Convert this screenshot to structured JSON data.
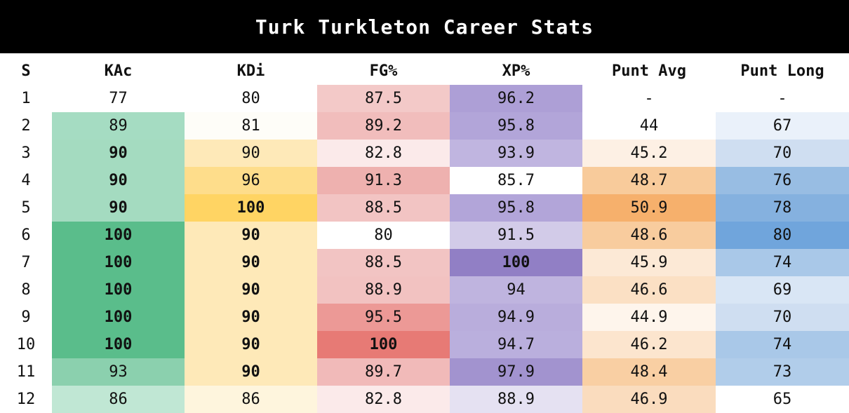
{
  "title": "Turk Turkleton Career Stats",
  "headers": [
    "S",
    "KAc",
    "KDi",
    "FG%",
    "XP%",
    "Punt Avg",
    "Punt Long"
  ],
  "rows": [
    {
      "cells": [
        {
          "v": "1",
          "bg": "#ffffff",
          "b": false
        },
        {
          "v": "77",
          "bg": "#ffffff",
          "b": false
        },
        {
          "v": "80",
          "bg": "#ffffff",
          "b": false
        },
        {
          "v": "87.5",
          "bg": "#f3c9c8",
          "b": false
        },
        {
          "v": "96.2",
          "bg": "#ad9fd6",
          "b": false
        },
        {
          "v": "-",
          "bg": "#ffffff",
          "b": false
        },
        {
          "v": "-",
          "bg": "#ffffff",
          "b": false
        }
      ]
    },
    {
      "cells": [
        {
          "v": "2",
          "bg": "#ffffff",
          "b": false
        },
        {
          "v": "89",
          "bg": "#a5dcc2",
          "b": false
        },
        {
          "v": "81",
          "bg": "#fefdf8",
          "b": false
        },
        {
          "v": "89.2",
          "bg": "#f1bdbc",
          "b": false
        },
        {
          "v": "95.8",
          "bg": "#b2a5d9",
          "b": false
        },
        {
          "v": "44",
          "bg": "#ffffff",
          "b": false
        },
        {
          "v": "67",
          "bg": "#eaf1fa",
          "b": false
        }
      ]
    },
    {
      "cells": [
        {
          "v": "3",
          "bg": "#ffffff",
          "b": false
        },
        {
          "v": "90",
          "bg": "#a4dbc0",
          "b": true
        },
        {
          "v": "90",
          "bg": "#fee9b8",
          "b": false
        },
        {
          "v": "82.8",
          "bg": "#fbeaea",
          "b": false
        },
        {
          "v": "93.9",
          "bg": "#c0b5e0",
          "b": false
        },
        {
          "v": "45.2",
          "bg": "#fdf0e4",
          "b": false
        },
        {
          "v": "70",
          "bg": "#cfdef1",
          "b": false
        }
      ]
    },
    {
      "cells": [
        {
          "v": "4",
          "bg": "#ffffff",
          "b": false
        },
        {
          "v": "90",
          "bg": "#a4dbc0",
          "b": true
        },
        {
          "v": "96",
          "bg": "#fedd8b",
          "b": false
        },
        {
          "v": "91.3",
          "bg": "#eeb1af",
          "b": false
        },
        {
          "v": "85.7",
          "bg": "#ffffff",
          "b": false
        },
        {
          "v": "48.7",
          "bg": "#f8cb9b",
          "b": false
        },
        {
          "v": "76",
          "bg": "#98bde3",
          "b": false
        }
      ]
    },
    {
      "cells": [
        {
          "v": "5",
          "bg": "#ffffff",
          "b": false
        },
        {
          "v": "90",
          "bg": "#a4dbc0",
          "b": true
        },
        {
          "v": "100",
          "bg": "#ffd463",
          "b": true
        },
        {
          "v": "88.5",
          "bg": "#f2c4c3",
          "b": false
        },
        {
          "v": "95.8",
          "bg": "#b2a5d9",
          "b": false
        },
        {
          "v": "50.9",
          "bg": "#f6b06c",
          "b": false
        },
        {
          "v": "78",
          "bg": "#85b1df",
          "b": false
        }
      ]
    },
    {
      "cells": [
        {
          "v": "6",
          "bg": "#ffffff",
          "b": false
        },
        {
          "v": "100",
          "bg": "#5abd8b",
          "b": true
        },
        {
          "v": "90",
          "bg": "#fee9b8",
          "b": true
        },
        {
          "v": "80",
          "bg": "#ffffff",
          "b": false
        },
        {
          "v": "91.5",
          "bg": "#d2cbe8",
          "b": false
        },
        {
          "v": "48.6",
          "bg": "#f8cc9e",
          "b": false
        },
        {
          "v": "80",
          "bg": "#70a5dc",
          "b": false
        }
      ]
    },
    {
      "cells": [
        {
          "v": "7",
          "bg": "#ffffff",
          "b": false
        },
        {
          "v": "100",
          "bg": "#5abd8b",
          "b": true
        },
        {
          "v": "90",
          "bg": "#fee9b8",
          "b": true
        },
        {
          "v": "88.5",
          "bg": "#f2c4c3",
          "b": false
        },
        {
          "v": "100",
          "bg": "#917fc5",
          "b": true
        },
        {
          "v": "45.9",
          "bg": "#fce9d6",
          "b": false
        },
        {
          "v": "74",
          "bg": "#a9c8e8",
          "b": false
        }
      ]
    },
    {
      "cells": [
        {
          "v": "8",
          "bg": "#ffffff",
          "b": false
        },
        {
          "v": "100",
          "bg": "#5abd8b",
          "b": true
        },
        {
          "v": "90",
          "bg": "#fee9b8",
          "b": true
        },
        {
          "v": "88.9",
          "bg": "#f2c2c1",
          "b": false
        },
        {
          "v": "94",
          "bg": "#bfb4df",
          "b": false
        },
        {
          "v": "46.6",
          "bg": "#fbe0c4",
          "b": false
        },
        {
          "v": "69",
          "bg": "#d9e6f5",
          "b": false
        }
      ]
    },
    {
      "cells": [
        {
          "v": "9",
          "bg": "#ffffff",
          "b": false
        },
        {
          "v": "100",
          "bg": "#5abd8b",
          "b": true
        },
        {
          "v": "90",
          "bg": "#fee9b8",
          "b": true
        },
        {
          "v": "95.5",
          "bg": "#ec9996",
          "b": false
        },
        {
          "v": "94.9",
          "bg": "#b9addc",
          "b": false
        },
        {
          "v": "44.9",
          "bg": "#fef5ec",
          "b": false
        },
        {
          "v": "70",
          "bg": "#cfdef1",
          "b": false
        }
      ]
    },
    {
      "cells": [
        {
          "v": "10",
          "bg": "#ffffff",
          "b": false
        },
        {
          "v": "100",
          "bg": "#5abd8b",
          "b": true
        },
        {
          "v": "90",
          "bg": "#fee9b8",
          "b": true
        },
        {
          "v": "100",
          "bg": "#e77a75",
          "b": true
        },
        {
          "v": "94.7",
          "bg": "#baafdd",
          "b": false
        },
        {
          "v": "46.2",
          "bg": "#fce5ce",
          "b": false
        },
        {
          "v": "74",
          "bg": "#a9c8e8",
          "b": false
        }
      ]
    },
    {
      "cells": [
        {
          "v": "11",
          "bg": "#ffffff",
          "b": false
        },
        {
          "v": "93",
          "bg": "#8bd0ae",
          "b": false
        },
        {
          "v": "90",
          "bg": "#fee9b8",
          "b": true
        },
        {
          "v": "89.7",
          "bg": "#f1bab9",
          "b": false
        },
        {
          "v": "97.9",
          "bg": "#a293cf",
          "b": false
        },
        {
          "v": "48.4",
          "bg": "#f9cfa3",
          "b": false
        },
        {
          "v": "73",
          "bg": "#b1cdea",
          "b": false
        }
      ]
    },
    {
      "cells": [
        {
          "v": "12",
          "bg": "#ffffff",
          "b": false
        },
        {
          "v": "86",
          "bg": "#c0e7d4",
          "b": false
        },
        {
          "v": "86",
          "bg": "#fef5dd",
          "b": false
        },
        {
          "v": "82.8",
          "bg": "#fbeaea",
          "b": false
        },
        {
          "v": "88.9",
          "bg": "#e5e1f2",
          "b": false
        },
        {
          "v": "46.9",
          "bg": "#fadcbe",
          "b": false
        },
        {
          "v": "65",
          "bg": "#ffffff",
          "b": false
        }
      ]
    }
  ]
}
